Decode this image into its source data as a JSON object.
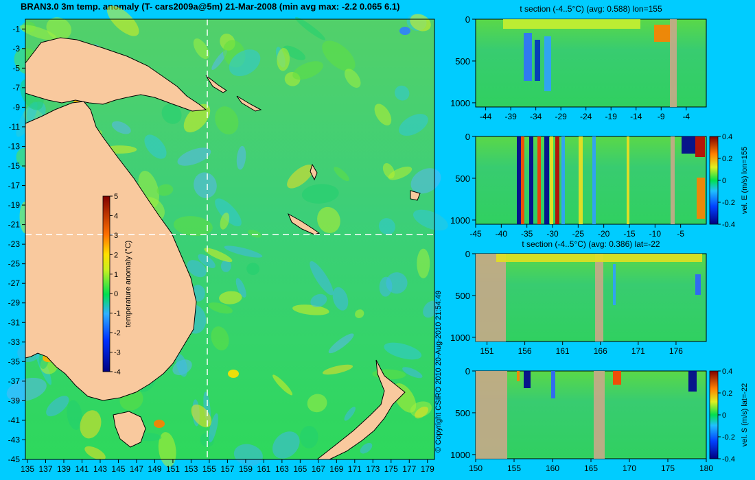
{
  "title": "BRAN3.0 3m temp. anomaly (T- cars2009a@5m) 21-Mar-2008 (min avg max: -2.2 0.065 6.1)",
  "copyright": "© Copyright CSIRO 2010   20-Aug-2010 21:54:49",
  "colors": {
    "background": "#00ccff",
    "land": "#f9c99e",
    "section_land": "#c8a888",
    "guide_line": "#ffffff"
  },
  "chart_data": [
    {
      "type": "heatmap",
      "title": "BRAN3.0 3m temp. anomaly (T- cars2009a@5m) 21-Mar-2008 (min avg max: -2.2 0.065 6.1)",
      "x_ticks": [
        "135",
        "137",
        "139",
        "141",
        "143",
        "145",
        "147",
        "149",
        "151",
        "153",
        "155",
        "157",
        "159",
        "161",
        "163",
        "165",
        "167",
        "169",
        "171",
        "173",
        "175",
        "177",
        "179"
      ],
      "y_ticks": [
        "-1",
        "-3",
        "-5",
        "-7",
        "-9",
        "-11",
        "-13",
        "-15",
        "-17",
        "-19",
        "-21",
        "-23",
        "-25",
        "-27",
        "-29",
        "-31",
        "-33",
        "-35",
        "-37",
        "-39",
        "-41",
        "-43",
        "-45"
      ],
      "xlim": [
        135,
        180
      ],
      "ylim": [
        -45,
        0
      ],
      "guide_lon": 155,
      "guide_lat": -22,
      "stats": {
        "min": -2.2,
        "avg": 0.065,
        "max": 6.1
      },
      "colorbar": {
        "label": "temperature anomaly (°C)",
        "ticks": [
          "5",
          "4",
          "3",
          "2",
          "1",
          "0",
          "-1",
          "-2",
          "-3",
          "-4"
        ],
        "range": [
          -4,
          5
        ]
      }
    },
    {
      "type": "heatmap",
      "title": "t section (-4..5°C) (avg: 0.588) lon=155",
      "x_ticks": [
        "-44",
        "-39",
        "-34",
        "-29",
        "-24",
        "-19",
        "-14",
        "-9",
        "-4"
      ],
      "y_ticks": [
        "0",
        "500",
        "1000"
      ]
    },
    {
      "type": "heatmap",
      "title": "",
      "x_ticks": [
        "-45",
        "-40",
        "-35",
        "-30",
        "-25",
        "-20",
        "-15",
        "-10",
        "-5"
      ],
      "y_ticks": [
        "0",
        "500",
        "1000"
      ],
      "colorbar": {
        "label": "vel. E (m/s) lon=155",
        "ticks": [
          "0.4",
          "0.2",
          "0",
          "-0.2",
          "-0.4"
        ],
        "range": [
          -0.4,
          0.4
        ]
      }
    },
    {
      "type": "heatmap",
      "title": "t section (-4..5°C) (avg: 0.386) lat=-22",
      "x_ticks": [
        "151",
        "156",
        "161",
        "166",
        "171",
        "176"
      ],
      "y_ticks": [
        "0",
        "500",
        "1000"
      ]
    },
    {
      "type": "heatmap",
      "title": "",
      "x_ticks": [
        "150",
        "155",
        "160",
        "165",
        "170",
        "175",
        "180"
      ],
      "y_ticks": [
        "0",
        "500",
        "1000"
      ],
      "colorbar": {
        "label": "vel. S (m/s) lat=-22",
        "ticks": [
          "0.4",
          "0.2",
          "0",
          "-0.2",
          "-0.4"
        ],
        "range": [
          -0.4,
          0.4
        ]
      }
    }
  ]
}
